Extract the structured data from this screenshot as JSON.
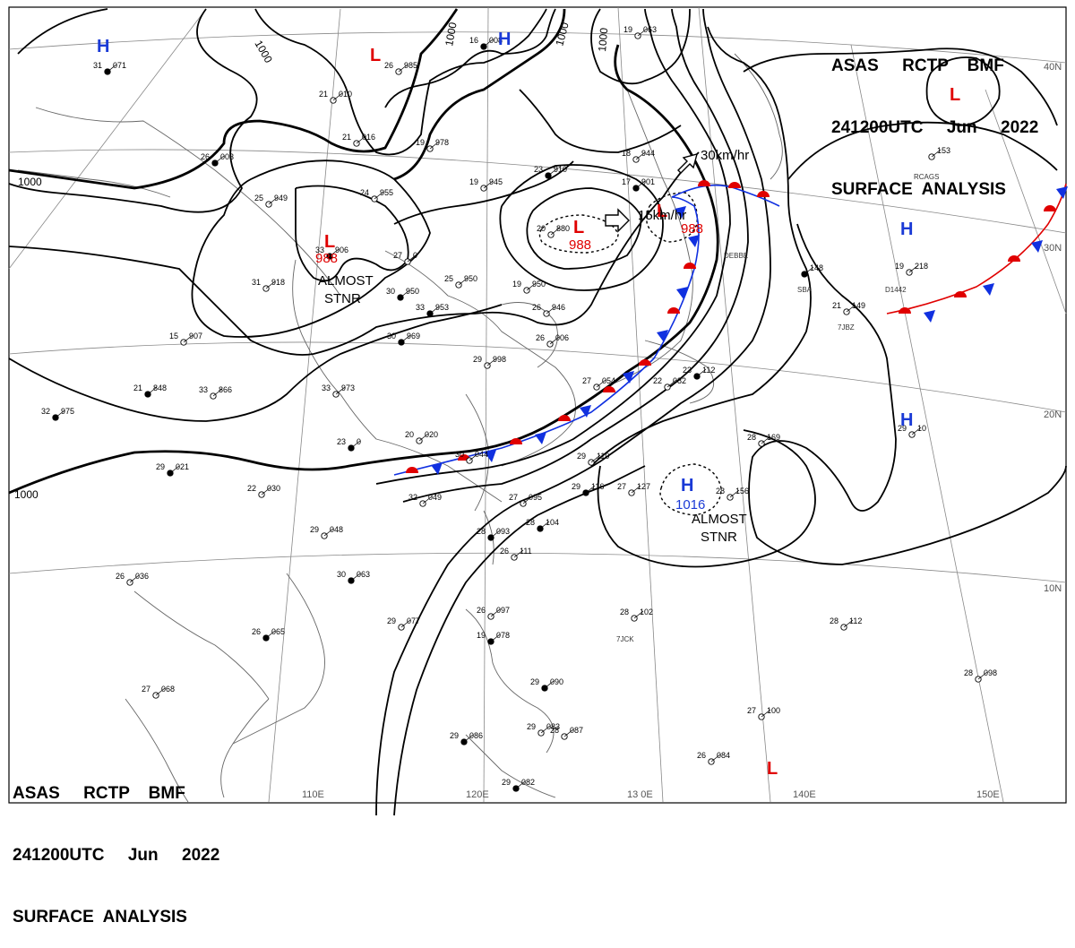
{
  "header": {
    "line1": "ASAS     RCTP    BMF",
    "line2": "241200UTC     Jun     2022",
    "line3": "SURFACE  ANALYSIS"
  },
  "isobar_labels": [
    "1000",
    "1000",
    "1000",
    "1000",
    "1000",
    "1000"
  ],
  "pressure_centers": [
    {
      "type": "H",
      "value": "",
      "color": "#1a3ad6"
    },
    {
      "type": "L",
      "value": "",
      "color": "#e00000"
    },
    {
      "type": "H",
      "value": "",
      "color": "#1a3ad6"
    },
    {
      "type": "L",
      "value": "988",
      "color": "#e00000"
    },
    {
      "type": "L",
      "value": "988",
      "color": "#e00000"
    },
    {
      "type": "L",
      "value": "988",
      "color": "#e00000"
    },
    {
      "type": "H",
      "value": "",
      "color": "#1a3ad6"
    },
    {
      "type": "H",
      "value": "",
      "color": "#1a3ad6"
    },
    {
      "type": "H",
      "value": "1016",
      "color": "#1a3ad6"
    },
    {
      "type": "L",
      "value": "",
      "color": "#e00000"
    },
    {
      "type": "L",
      "value": "",
      "color": "#e00000"
    }
  ],
  "annotations": {
    "almost_stnr_1": "ALMOST",
    "almost_stnr_1b": "STNR",
    "almost_stnr_2": "ALMOST",
    "almost_stnr_2b": "STNR",
    "motion_1": "30km/hr",
    "motion_2": "15km/hr"
  },
  "longitude_labels": [
    "110E",
    "120E",
    "13 0E",
    "140E",
    "150E"
  ],
  "latitude_labels": [
    "40N",
    "30N",
    "20N",
    "10N"
  ],
  "ship_ids": [
    "RCAGS",
    "DEBBE",
    "SBA",
    "7JBZ",
    "7JCK",
    "D1442"
  ],
  "stations": [
    {
      "t": "31",
      "p": "071"
    },
    {
      "t": "21",
      "p": "010"
    },
    {
      "t": "26",
      "p": "985"
    },
    {
      "t": "26",
      "p": "003"
    },
    {
      "t": "21",
      "p": "016"
    },
    {
      "t": "19",
      "p": "978"
    },
    {
      "t": "16",
      "p": "008"
    },
    {
      "t": "25",
      "p": "949"
    },
    {
      "t": "24",
      "p": "955"
    },
    {
      "t": "23",
      "p": "910"
    },
    {
      "t": "19",
      "p": "945"
    },
    {
      "t": "18",
      "p": "944"
    },
    {
      "t": "17",
      "p": "901"
    },
    {
      "t": "19",
      "p": "063"
    },
    {
      "t": "20",
      "p": "880"
    },
    {
      "t": "33",
      "p": "906"
    },
    {
      "t": "27",
      "p": "0"
    },
    {
      "t": "31",
      "p": "918"
    },
    {
      "t": "30",
      "p": "950"
    },
    {
      "t": "25",
      "p": "950"
    },
    {
      "t": "19",
      "p": "950"
    },
    {
      "t": "33",
      "p": "953"
    },
    {
      "t": "26",
      "p": "946"
    },
    {
      "t": "15",
      "p": "907"
    },
    {
      "t": "30",
      "p": "969"
    },
    {
      "t": "29",
      "p": "998"
    },
    {
      "t": "26",
      "p": "006"
    },
    {
      "t": "21",
      "p": "848"
    },
    {
      "t": "33",
      "p": "866"
    },
    {
      "t": "33",
      "p": "973"
    },
    {
      "t": "32",
      "p": "975"
    },
    {
      "t": "27",
      "p": "054"
    },
    {
      "t": "22",
      "p": "082"
    },
    {
      "t": "23",
      "p": "112"
    },
    {
      "t": "28",
      "p": "169"
    },
    {
      "t": "20",
      "p": "020"
    },
    {
      "t": "23",
      "p": "0"
    },
    {
      "t": "30",
      "p": "044"
    },
    {
      "t": "29",
      "p": "110"
    },
    {
      "t": "29",
      "p": "021"
    },
    {
      "t": "22",
      "p": "030"
    },
    {
      "t": "32",
      "p": "049"
    },
    {
      "t": "29",
      "p": "116"
    },
    {
      "t": "27",
      "p": "127"
    },
    {
      "t": "27",
      "p": "095"
    },
    {
      "t": "28",
      "p": "104"
    },
    {
      "t": "28",
      "p": "156"
    },
    {
      "t": "29",
      "p": "048"
    },
    {
      "t": "28",
      "p": "093"
    },
    {
      "t": "26",
      "p": "111"
    },
    {
      "t": "26",
      "p": "036"
    },
    {
      "t": "30",
      "p": "063"
    },
    {
      "t": "26",
      "p": "097"
    },
    {
      "t": "29",
      "p": "077"
    },
    {
      "t": "26",
      "p": "065"
    },
    {
      "t": "28",
      "p": "102"
    },
    {
      "t": "28",
      "p": "112"
    },
    {
      "t": "19",
      "p": "078"
    },
    {
      "t": "28",
      "p": "098"
    },
    {
      "t": "27",
      "p": "068"
    },
    {
      "t": "29",
      "p": "090"
    },
    {
      "t": "27",
      "p": "100"
    },
    {
      "t": "29",
      "p": "083"
    },
    {
      "t": "29",
      "p": "086"
    },
    {
      "t": "28",
      "p": "087"
    },
    {
      "t": "26",
      "p": "084"
    },
    {
      "t": "29",
      "p": "082"
    },
    {
      "t": "19",
      "p": "218"
    },
    {
      "t": "21",
      "p": "149"
    },
    {
      "t": "",
      "p": "148"
    },
    {
      "t": "",
      "p": "153"
    },
    {
      "t": "29",
      "p": "10"
    }
  ]
}
